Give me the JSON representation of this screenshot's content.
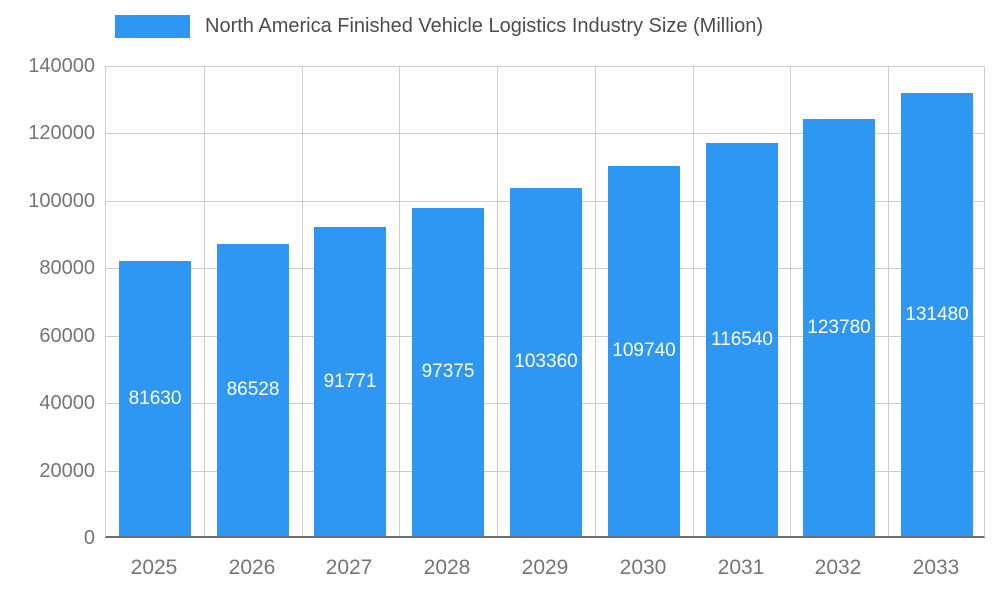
{
  "legend": {
    "label": "North America Finished Vehicle Logistics Industry Size (Million)"
  },
  "chart_data": {
    "type": "bar",
    "title": "North America Finished Vehicle Logistics Industry Size (Million)",
    "series_name": "North America Finished Vehicle Logistics Industry Size (Million)",
    "categories": [
      "2025",
      "2026",
      "2027",
      "2028",
      "2029",
      "2030",
      "2031",
      "2032",
      "2033"
    ],
    "values": [
      81630,
      86528,
      91771,
      97375,
      103360,
      109740,
      116540,
      123780,
      131480
    ],
    "data_labels": [
      "81630",
      "86528",
      "91771",
      "97375",
      "103360",
      "109740",
      "116540",
      "123780",
      "131480"
    ],
    "xlabel": "",
    "ylabel": "",
    "ylim": [
      0,
      140000
    ],
    "y_ticks": [
      0,
      20000,
      40000,
      60000,
      80000,
      100000,
      120000,
      140000
    ],
    "grid": true,
    "legend_position": "top",
    "colors": {
      "bar": "#2E96F3",
      "bar_label_text": "#ffffff",
      "axis_text": "#757575",
      "legend_text": "#4c4c4c",
      "gridline": "#cccccc",
      "axis_line": "#6e6e6e",
      "background": "#ffffff"
    }
  }
}
